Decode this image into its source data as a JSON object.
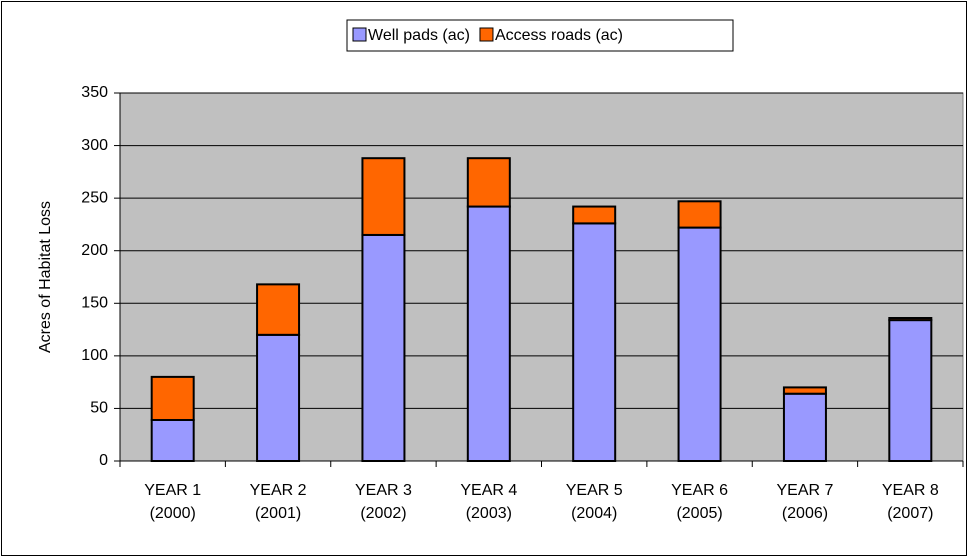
{
  "chart_data": {
    "type": "bar",
    "stacked": true,
    "y_label": "Acres of Habitat Loss",
    "categories": [
      [
        "YEAR 1",
        "(2000)"
      ],
      [
        "YEAR 2",
        "(2001)"
      ],
      [
        "YEAR 3",
        "(2002)"
      ],
      [
        "YEAR 4",
        "(2003)"
      ],
      [
        "YEAR 5",
        "(2004)"
      ],
      [
        "YEAR 6",
        "(2005)"
      ],
      [
        "YEAR 7",
        "(2006)"
      ],
      [
        "YEAR 8",
        "(2007)"
      ]
    ],
    "series": [
      {
        "name": "Well pads (ac)",
        "color": "#9999ff",
        "values": [
          39,
          120,
          215,
          242,
          226,
          222,
          64,
          134
        ]
      },
      {
        "name": "Access roads (ac)",
        "color": "#ff6600",
        "values": [
          41,
          48,
          73,
          46,
          16,
          25,
          6,
          2
        ]
      }
    ],
    "ylim": [
      0,
      350
    ],
    "yticks": [
      0,
      50,
      100,
      150,
      200,
      250,
      300,
      350
    ],
    "grid": true,
    "legend": "top"
  }
}
